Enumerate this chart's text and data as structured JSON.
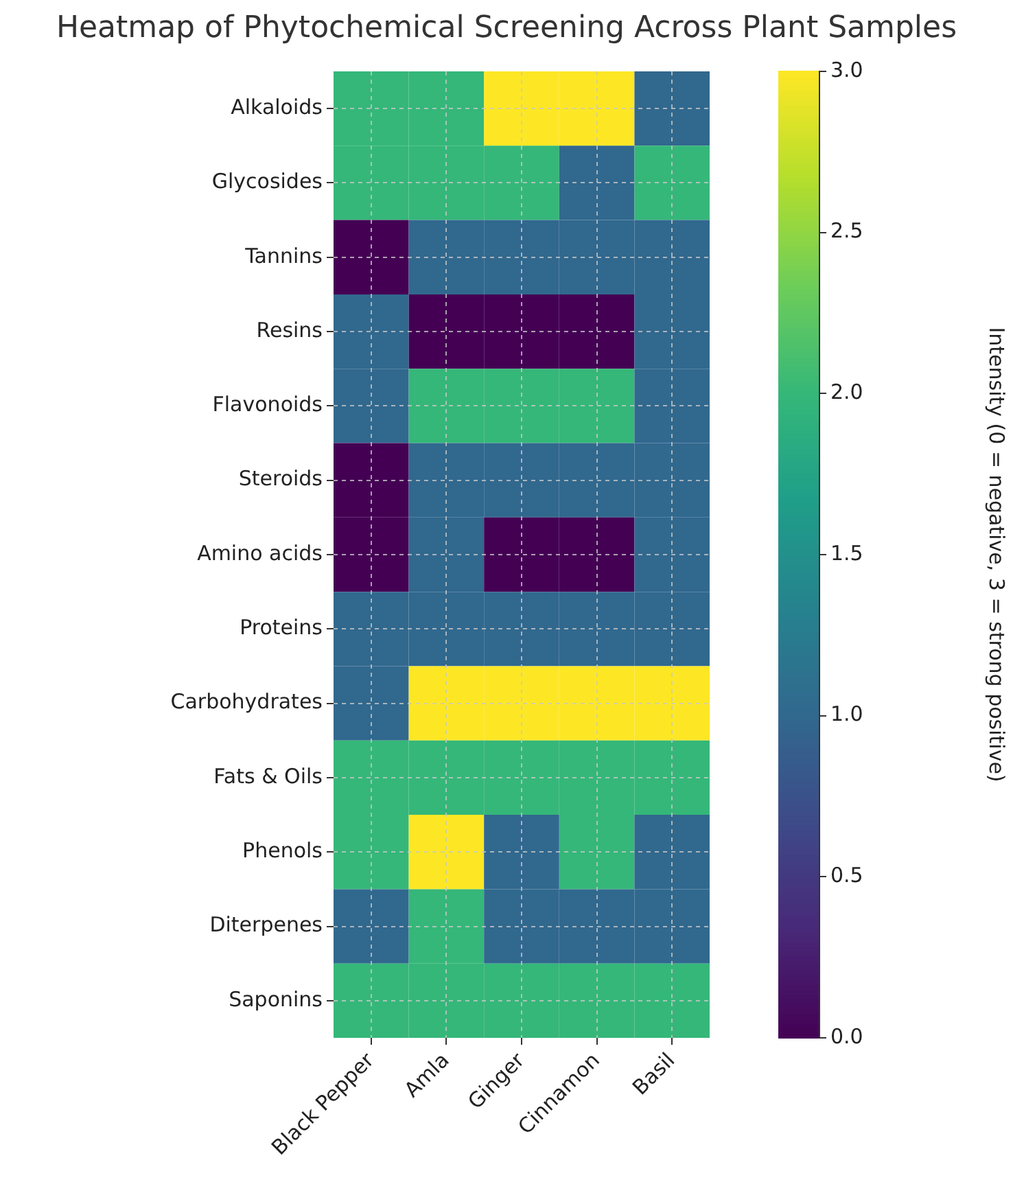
{
  "chart_data": {
    "type": "heatmap",
    "title": "Heatmap of Phytochemical Screening Across Plant Samples",
    "categories": [
      "Black Pepper",
      "Amla",
      "Ginger",
      "Cinnamon",
      "Basil"
    ],
    "y_categories": [
      "Alkaloids",
      "Glycosides",
      "Tannins",
      "Resins",
      "Flavonoids",
      "Steroids",
      "Amino acids",
      "Proteins",
      "Carbohydrates",
      "Fats & Oils",
      "Phenols",
      "Diterpenes",
      "Saponins"
    ],
    "cells": [
      [
        2,
        2,
        3,
        3,
        1
      ],
      [
        2,
        2,
        2,
        1,
        2
      ],
      [
        0,
        1,
        1,
        1,
        1
      ],
      [
        1,
        0,
        0,
        0,
        1
      ],
      [
        1,
        2,
        2,
        2,
        1
      ],
      [
        0,
        1,
        1,
        1,
        1
      ],
      [
        0,
        1,
        0,
        0,
        1
      ],
      [
        1,
        1,
        1,
        1,
        1
      ],
      [
        1,
        3,
        3,
        3,
        3
      ],
      [
        2,
        2,
        2,
        2,
        2
      ],
      [
        2,
        3,
        1,
        2,
        1
      ],
      [
        1,
        2,
        1,
        1,
        1
      ],
      [
        2,
        2,
        2,
        2,
        2
      ]
    ],
    "clim": [
      0,
      3
    ],
    "cticks": [
      {
        "value": 0,
        "label": "0.0"
      },
      0.5,
      {
        "value": 1,
        "label": "1.0"
      },
      1.5,
      {
        "value": 2,
        "label": "2.0"
      },
      2.5,
      {
        "value": 3,
        "label": "3.0"
      }
    ],
    "clabel": "Intensity (0 = negative, 3 = strong positive)",
    "grid": true
  }
}
